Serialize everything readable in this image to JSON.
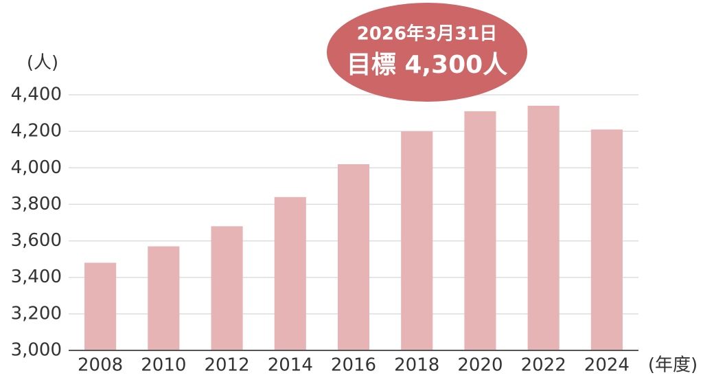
{
  "chart_data": {
    "type": "bar",
    "y_label": "(人)",
    "x_label": "(年度)",
    "annotation": {
      "date": "2026年3月31日",
      "target": "目標 4,300人"
    },
    "categories": [
      "2008",
      "2010",
      "2012",
      "2014",
      "2016",
      "2018",
      "2020",
      "2022",
      "2024"
    ],
    "values": [
      3480,
      3570,
      3680,
      3840,
      4020,
      4200,
      4310,
      4340,
      4210
    ],
    "color": "#e6b4b4",
    "ylim": [
      3000,
      4400
    ],
    "yticks": [
      {
        "value": 3000,
        "label": "3,000"
      },
      {
        "value": 3200,
        "label": "3,200"
      },
      {
        "value": 3400,
        "label": "3,400"
      },
      {
        "value": 3600,
        "label": "3,600"
      },
      {
        "value": 3800,
        "label": "3,800"
      },
      {
        "value": 4000,
        "label": "4,000"
      },
      {
        "value": 4200,
        "label": "4,200"
      },
      {
        "value": 4400,
        "label": "4,400"
      }
    ],
    "grid": true
  }
}
